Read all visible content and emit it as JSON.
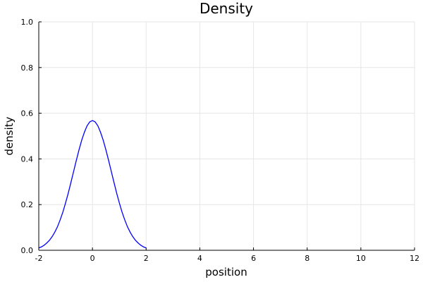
{
  "chart_data": {
    "type": "line",
    "title": "Density",
    "xlabel": "position",
    "ylabel": "density",
    "xlim": [
      -2,
      12
    ],
    "ylim": [
      0,
      1
    ],
    "xticks": [
      -2,
      0,
      2,
      4,
      6,
      8,
      10,
      12
    ],
    "yticks": [
      0.0,
      0.2,
      0.4,
      0.6,
      0.8,
      1.0
    ],
    "xtick_labels": [
      "-2",
      "0",
      "2",
      "4",
      "6",
      "8",
      "10",
      "12"
    ],
    "ytick_labels": [
      "0.0",
      "0.2",
      "0.4",
      "0.6",
      "0.8",
      "1.0"
    ],
    "grid": true,
    "legend": "none",
    "series": [
      {
        "color": "#0000ff",
        "x": [
          -2.0,
          -1.9,
          -1.8,
          -1.7,
          -1.6,
          -1.5,
          -1.4,
          -1.3,
          -1.2,
          -1.1,
          -1.0,
          -0.9,
          -0.8,
          -0.7,
          -0.6,
          -0.5,
          -0.4,
          -0.3,
          -0.2,
          -0.1,
          0.0,
          0.1,
          0.2,
          0.3,
          0.4,
          0.5,
          0.6,
          0.7,
          0.8,
          0.9,
          1.0,
          1.1,
          1.2,
          1.3,
          1.4,
          1.5,
          1.6,
          1.7,
          1.8,
          1.9,
          2.0
        ],
        "y": [
          0.01,
          0.015,
          0.022,
          0.032,
          0.044,
          0.06,
          0.08,
          0.104,
          0.134,
          0.168,
          0.208,
          0.251,
          0.298,
          0.346,
          0.394,
          0.44,
          0.482,
          0.517,
          0.545,
          0.562,
          0.568,
          0.562,
          0.545,
          0.517,
          0.482,
          0.44,
          0.394,
          0.346,
          0.298,
          0.251,
          0.208,
          0.168,
          0.134,
          0.104,
          0.08,
          0.06,
          0.044,
          0.032,
          0.022,
          0.015,
          0.01
        ]
      }
    ]
  }
}
